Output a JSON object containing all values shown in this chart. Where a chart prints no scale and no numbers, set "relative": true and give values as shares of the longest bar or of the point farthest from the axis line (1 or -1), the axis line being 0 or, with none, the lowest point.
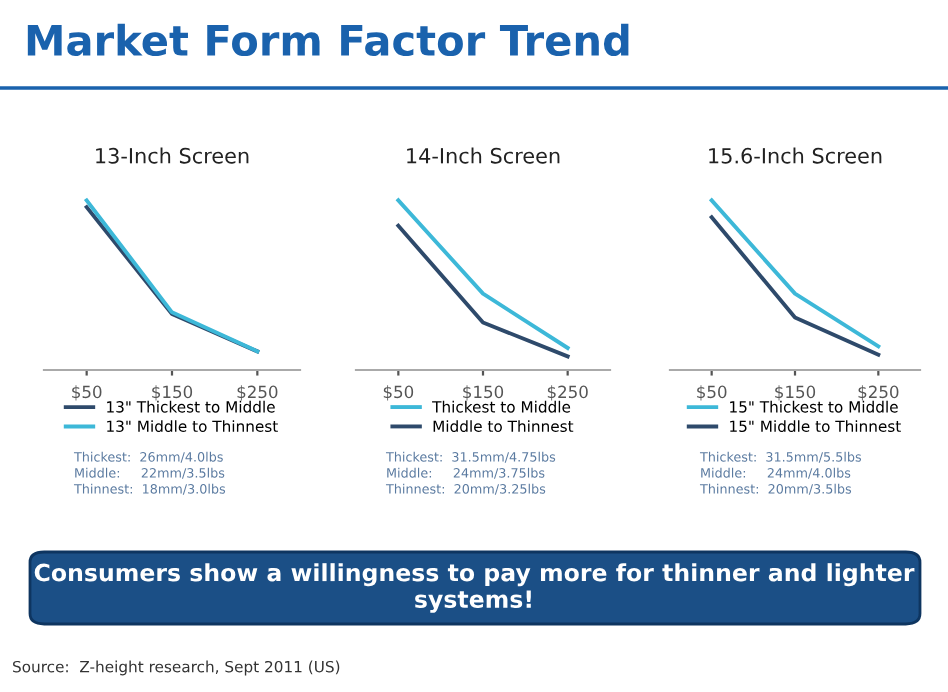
{
  "chart_data": [
    {
      "type": "line",
      "title": "13-Inch Screen",
      "relative": true,
      "categories": [
        "$50",
        "$150",
        "$250"
      ],
      "legend": "bottom",
      "tick_labels": "x",
      "series": [
        {
          "name": "13\" Thickest to Middle",
          "color": "#2e4a6b",
          "values": [
            0.96,
            0.33,
            0.11
          ]
        },
        {
          "name": "13\" Middle to Thinnest",
          "color": "#3db8d8",
          "values": [
            1,
            0.34,
            0.11
          ]
        }
      ],
      "annotations": [
        "Thickest:  26mm/4.0lbs",
        "Middle:     22mm/3.5lbs",
        "Thinnest:  18mm/3.0lbs"
      ]
    },
    {
      "type": "line",
      "title": "14-Inch Screen",
      "relative": true,
      "categories": [
        "$50",
        "$150",
        "$250"
      ],
      "legend": "bottom",
      "tick_labels": "x",
      "series": [
        {
          "name": "Thickest to Middle",
          "color": "#3db8d8",
          "values": [
            1,
            0.45,
            0.13
          ]
        },
        {
          "name": "Middle to Thinnest",
          "color": "#2e4a6b",
          "values": [
            0.85,
            0.28,
            0.08
          ]
        }
      ],
      "annotations": [
        "Thickest:  31.5mm/4.75lbs",
        "Middle:     24mm/3.75lbs",
        "Thinnest:  20mm/3.25lbs"
      ]
    },
    {
      "type": "line",
      "title": "15.6-Inch Screen",
      "relative": true,
      "categories": [
        "$50",
        "$150",
        "$250"
      ],
      "legend": "bottom",
      "tick_labels": "x",
      "series": [
        {
          "name": "15\" Thickest to Middle",
          "color": "#3db8d8",
          "values": [
            1,
            0.45,
            0.14
          ]
        },
        {
          "name": "15\" Middle to Thinnest",
          "color": "#2e4a6b",
          "values": [
            0.9,
            0.31,
            0.09
          ]
        }
      ],
      "annotations": [
        "Thickest:  31.5mm/5.5lbs",
        "Middle:     24mm/4.0lbs",
        "Thinnest:  20mm/3.5lbs"
      ]
    },
    {
      "type": "other",
      "title": "Market Form Factor Trend",
      "annotations": [
        "Consumers show a willingness to pay more for thinner and lighter systems!",
        "Source:  Z-height research, Sept 2011 (US)"
      ]
    }
  ]
}
